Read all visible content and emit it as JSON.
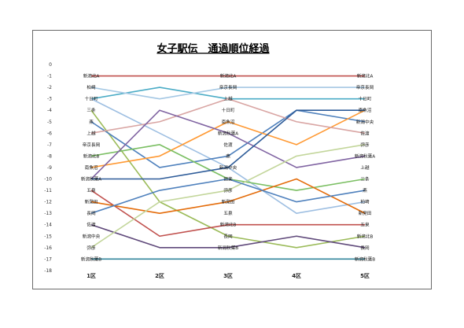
{
  "chart_data": {
    "type": "line",
    "title": "女子駅伝　通過順位経過",
    "categories": [
      "1区",
      "2区",
      "3区",
      "4区",
      "5区"
    ],
    "ylim": [
      -18,
      0
    ],
    "yticks": [
      0,
      -1,
      -2,
      -3,
      -4,
      -5,
      -6,
      -7,
      -8,
      -9,
      -10,
      -11,
      -12,
      -13,
      -14,
      -15,
      -16,
      -17,
      -18
    ],
    "grid": false,
    "labels_by_leg": [
      [
        "新潟北A",
        "柏崎",
        "十日町",
        "三条",
        "燕",
        "上越",
        "帝京長岡",
        "新潟北B",
        "南魚沼",
        "新潟秋葉A",
        "五泉",
        "新発田",
        "長岡",
        "佐渡",
        "新潟中央",
        "弥彦",
        "新潟秋葉B"
      ],
      [],
      [
        "新潟北A",
        "帝京長岡",
        "上越",
        "十日町",
        "南魚沼",
        "新潟秋葉A",
        "佐渡",
        "燕",
        "新潟中央",
        "田楽",
        "弥彦",
        "新発田",
        "五泉",
        "新潟北B",
        "長岡",
        "新潟秋葉B"
      ],
      [],
      [
        "新潟北A",
        "帝京長岡",
        "十日町",
        "南魚沼",
        "新潟中央",
        "佐渡",
        "弥彦",
        "新潟秋葉A",
        "上越",
        "三条",
        "燕",
        "柏崎",
        "新発田",
        "五泉",
        "新潟北B",
        "長岡",
        "新潟秋葉B"
      ]
    ],
    "series": [
      {
        "color": "#c0504d",
        "values": [
          -1,
          -1,
          -1,
          -1,
          -1
        ]
      },
      {
        "color": "#4bacc6",
        "values": [
          -3,
          -2,
          -3,
          -3,
          -3
        ]
      },
      {
        "color": "#a5c8e4",
        "values": [
          -2,
          -3,
          -2,
          -2,
          -2
        ]
      },
      {
        "color": "#9ebfe2",
        "values": [
          -3,
          -6,
          -9,
          -13,
          -12
        ]
      },
      {
        "color": "#9bbb59",
        "values": [
          -4,
          -12,
          -15,
          -16,
          -15
        ]
      },
      {
        "color": "#4f81bd",
        "values": [
          -5,
          -9,
          -8,
          -4,
          -5
        ]
      },
      {
        "color": "#ff9933",
        "values": [
          -9,
          -8,
          -5,
          -7,
          -4
        ]
      },
      {
        "color": "#d9a5a3",
        "values": [
          -6,
          -5,
          -3,
          -5,
          -6
        ]
      },
      {
        "color": "#7bbf63",
        "values": [
          -8,
          -7,
          -10,
          -11,
          -10
        ]
      },
      {
        "color": "#8064a2",
        "values": [
          -10,
          -4,
          -6,
          -9,
          -8
        ]
      },
      {
        "color": "#2e5c99",
        "values": [
          -10,
          -10,
          -9,
          -4,
          -4
        ]
      },
      {
        "color": "#c0504d",
        "values": [
          -11,
          -15,
          -14,
          -14,
          -14
        ]
      },
      {
        "color": "#e46c0a",
        "values": [
          -12,
          -13,
          -12,
          -10,
          -13
        ]
      },
      {
        "color": "#604a7b",
        "values": [
          -14,
          -16,
          -16,
          -15,
          -16
        ]
      },
      {
        "color": "#c3d69b",
        "values": [
          -16,
          -12,
          -11,
          -8,
          -7
        ]
      },
      {
        "color": "#4f81bd",
        "values": [
          -13,
          -11,
          -10,
          -12,
          -11
        ]
      },
      {
        "color": "#31859c",
        "values": [
          -17,
          -17,
          -17,
          -17,
          -17
        ]
      }
    ]
  }
}
